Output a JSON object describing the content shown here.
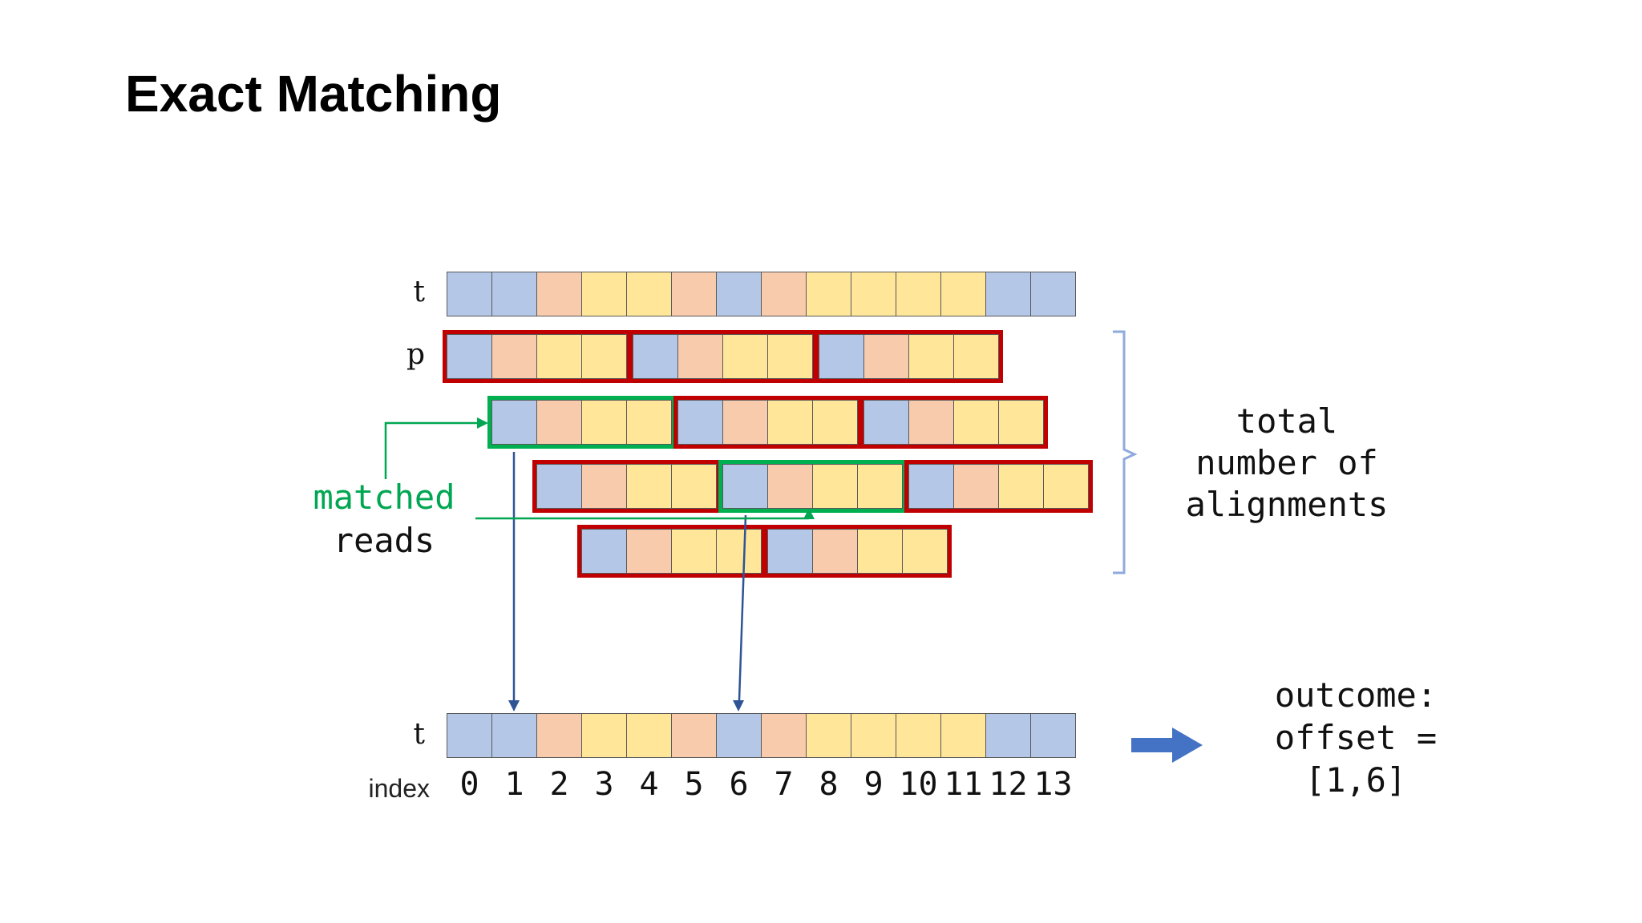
{
  "title": "Exact Matching",
  "labels": {
    "t_top": "t",
    "p": "p",
    "t_bottom": "t",
    "index": "index"
  },
  "colors": {
    "cell_blue": "#b4c7e7",
    "cell_peach": "#f8cbad",
    "cell_yellow": "#ffe699",
    "cell_border": "#595959",
    "red_outline": "#c00000",
    "green_outline": "#00b050",
    "green_text": "#00a651",
    "green_line": "#00a651",
    "thin_arrow": "#2e5496",
    "block_arrow": "#4472c4",
    "bracket": "#8faadc"
  },
  "t_cells": [
    "blue",
    "blue",
    "peach",
    "yellow",
    "yellow",
    "peach",
    "blue",
    "peach",
    "yellow",
    "yellow",
    "yellow",
    "yellow",
    "blue",
    "blue"
  ],
  "pattern_cells": [
    "blue",
    "peach",
    "yellow",
    "yellow"
  ],
  "alignment_rows": [
    {
      "groups": [
        {
          "offset": 0,
          "matched": false
        },
        {
          "offset": 4,
          "matched": false
        },
        {
          "offset": 8,
          "matched": false
        }
      ]
    },
    {
      "groups": [
        {
          "offset": 1,
          "matched": true
        },
        {
          "offset": 5,
          "matched": false
        },
        {
          "offset": 9,
          "matched": false
        }
      ]
    },
    {
      "groups": [
        {
          "offset": 2,
          "matched": false
        },
        {
          "offset": 6,
          "matched": true
        },
        {
          "offset": 10,
          "matched": false
        }
      ]
    },
    {
      "groups": [
        {
          "offset": 3,
          "matched": false
        },
        {
          "offset": 7,
          "matched": false
        }
      ]
    }
  ],
  "index_labels": [
    "0",
    "1",
    "2",
    "3",
    "4",
    "5",
    "6",
    "7",
    "8",
    "9",
    "10",
    "11",
    "12",
    "13"
  ],
  "matched_label": {
    "line1": "matched",
    "line2": "reads"
  },
  "right_note": {
    "lines": [
      "total",
      "number of",
      "alignments"
    ]
  },
  "outcome": {
    "lines": [
      "outcome:",
      "offset =",
      "[1,6]"
    ]
  },
  "matched_offsets": [
    1,
    6
  ]
}
